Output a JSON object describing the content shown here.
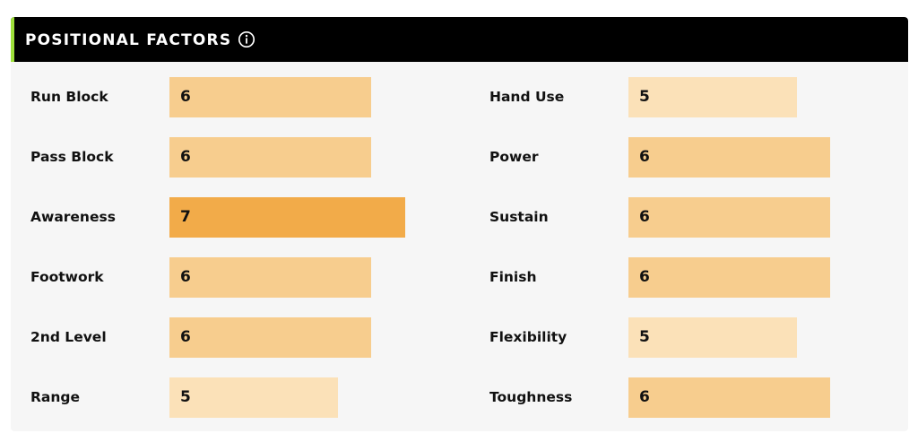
{
  "section": {
    "title": "POSITIONAL FACTORS",
    "info_icon": "info-circle-icon",
    "header_bg": "#000000",
    "accent_color": "#9ee03a",
    "panel_bg": "#f6f6f6"
  },
  "scale": {
    "max": 8
  },
  "level_colors": {
    "5": "#fbe1b8",
    "6": "#f7cd8e",
    "7": "#f2ab49"
  },
  "factors": [
    {
      "label": "Run Block",
      "value": "6"
    },
    {
      "label": "Pass Block",
      "value": "6"
    },
    {
      "label": "Awareness",
      "value": "7"
    },
    {
      "label": "Footwork",
      "value": "6"
    },
    {
      "label": "2nd Level",
      "value": "6"
    },
    {
      "label": "Range",
      "value": "5"
    },
    {
      "label": "Hand Use",
      "value": "5"
    },
    {
      "label": "Power",
      "value": "6"
    },
    {
      "label": "Sustain",
      "value": "6"
    },
    {
      "label": "Finish",
      "value": "6"
    },
    {
      "label": "Flexibility",
      "value": "5"
    },
    {
      "label": "Toughness",
      "value": "6"
    }
  ]
}
